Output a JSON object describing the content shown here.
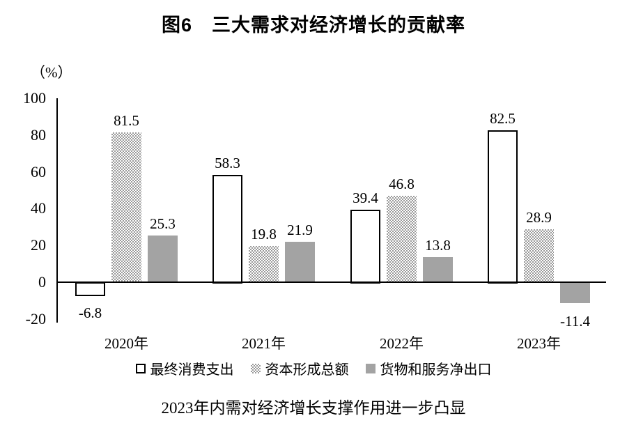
{
  "title": "图6　三大需求对经济增长的贡献率",
  "caption": "2023年内需对经济增长支撑作用进一步凸显",
  "chart_data": {
    "type": "bar",
    "title": "图6　三大需求对经济增长的贡献率",
    "categories": [
      "2020年",
      "2021年",
      "2022年",
      "2023年"
    ],
    "series": [
      {
        "name": "最终消费支出",
        "style": "outline",
        "values": [
          -6.8,
          58.3,
          39.4,
          82.5
        ]
      },
      {
        "name": "资本形成总额",
        "style": "dotted",
        "values": [
          81.5,
          19.8,
          46.8,
          28.9
        ]
      },
      {
        "name": "货物和服务净出口",
        "style": "gray",
        "values": [
          25.3,
          21.9,
          13.8,
          -11.4
        ]
      }
    ],
    "xlabel": "",
    "ylabel": "（%）",
    "ylim": [
      -20,
      100
    ],
    "yticks": [
      100,
      80,
      60,
      40,
      20,
      0,
      -20
    ],
    "grid": false,
    "legend_position": "bottom",
    "subtitle": "2023年内需对经济增长支撑作用进一步凸显"
  },
  "colors": {
    "bar_outline_stroke": "#000000",
    "bar_outline_fill": "#ffffff",
    "bar_dotted_dot": "#9a9a9a",
    "bar_gray_fill": "#a3a3a3",
    "axis": "#000000",
    "text": "#000000",
    "background": "#ffffff"
  }
}
